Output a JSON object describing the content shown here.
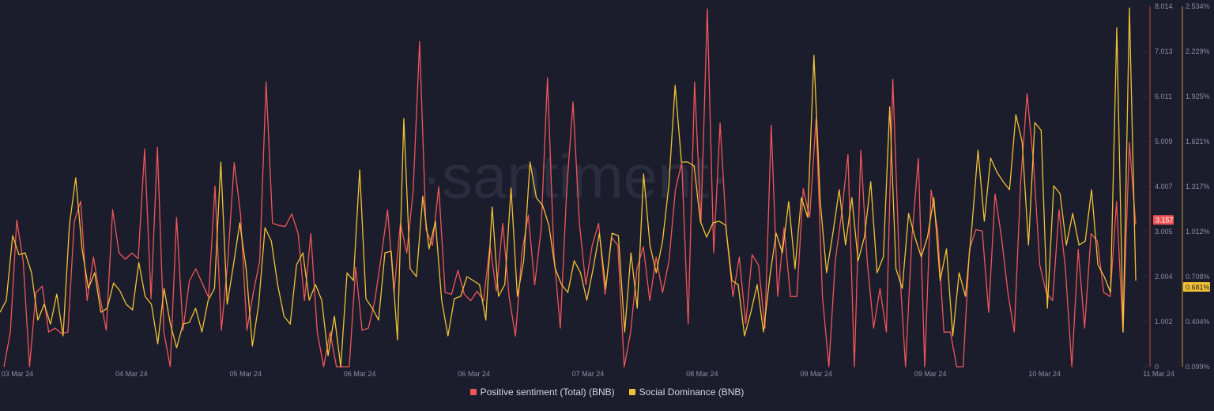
{
  "colors": {
    "background": "#1b1d2c",
    "sentiment": "#f0555a",
    "dominance": "#f2c235",
    "text": "#8a8fa3"
  },
  "watermark": "·santiment·",
  "chart_data": {
    "type": "line",
    "title": "",
    "x_tick_labels": [
      "03 Mar 24",
      "04 Mar 24",
      "05 Mar 24",
      "06 Mar 24",
      "06 Mar 24",
      "07 Mar 24",
      "08 Mar 24",
      "09 Mar 24",
      "09 Mar 24",
      "10 Mar 24",
      "11 Mar 24"
    ],
    "left_axis": {
      "ticks": [
        "8.014",
        "7.013",
        "6.011",
        "5.009",
        "4.007",
        "3.005",
        "2.004",
        "1.002",
        "0"
      ],
      "range": [
        0,
        8.014
      ]
    },
    "right_axis": {
      "ticks": [
        "2.534%",
        "2.229%",
        "1.925%",
        "1.621%",
        "1.317%",
        "1.012%",
        "0.708%",
        "0.404%",
        "0.099%"
      ],
      "range": [
        0.099,
        2.534
      ]
    },
    "series": [
      {
        "name": "Positive sentiment (Total) (BNB)",
        "axis": "left",
        "color": "#f0555a",
        "current_label": "3.157",
        "values": [
          0,
          0.77,
          3.26,
          2.35,
          0,
          1.65,
          1.79,
          0.77,
          0.86,
          0.74,
          0.77,
          3.23,
          3.68,
          1.47,
          2.44,
          1.56,
          0.81,
          3.49,
          2.53,
          2.39,
          2.53,
          2.4,
          4.84,
          1.51,
          4.88,
          0.77,
          0,
          3.32,
          0.81,
          1.91,
          2.18,
          1.86,
          1.54,
          4.02,
          0.81,
          2.35,
          4.54,
          3.4,
          0.81,
          1.65,
          2.35,
          6.33,
          3.19,
          3.14,
          3.12,
          3.4,
          2.96,
          1.47,
          2.96,
          0.77,
          0,
          0.77,
          0,
          0,
          0,
          2.21,
          0.81,
          0.86,
          1.47,
          2.44,
          3.49,
          1.65,
          3.19,
          2.53,
          3.93,
          7.23,
          3.05,
          2.7,
          4.0,
          1.65,
          1.61,
          2.14,
          1.61,
          1.47,
          1.68,
          1.47,
          2.7,
          1.68,
          3.19,
          1.56,
          0.68,
          2.53,
          3.37,
          1.82,
          3.05,
          6.42,
          2.53,
          0.86,
          3.93,
          5.89,
          3.19,
          1.82,
          2.7,
          3.19,
          1.61,
          2.88,
          2.7,
          0,
          0.77,
          2.18,
          2.67,
          1.47,
          2.44,
          1.65,
          2.35,
          3.93,
          4.54,
          0.95,
          6.33,
          3.19,
          7.96,
          2.53,
          5.42,
          2.96,
          1.56,
          2.44,
          0.95,
          2.49,
          2.26,
          0.86,
          5.37,
          1.56,
          3.09,
          1.56,
          1.56,
          3.96,
          3.32,
          5.51,
          1.56,
          0,
          2.35,
          3.4,
          4.72,
          0,
          4.81,
          2.35,
          0.86,
          1.74,
          0.77,
          6.39,
          2.35,
          0,
          2.88,
          4.63,
          0,
          3.93,
          3.05,
          0.77,
          0.77,
          0,
          0,
          2.61,
          3.05,
          3.02,
          1.21,
          3.84,
          2.88,
          1.65,
          0.77,
          4.11,
          6.07,
          4.54,
          2.26,
          1.65,
          1.47,
          3.49,
          2.18,
          0,
          2.61,
          0.86,
          2.96,
          2.79,
          1.65,
          1.56,
          3.67,
          0.77,
          4.98,
          3.16
        ]
      },
      {
        "name": "Social Dominance (BNB)",
        "axis": "right",
        "color": "#f2c235",
        "current_label": "0.681%",
        "values": [
          0.467,
          0.548,
          0.985,
          0.857,
          0.868,
          0.734,
          0.414,
          0.521,
          0.387,
          0.59,
          0.307,
          1.055,
          1.375,
          0.895,
          0.628,
          0.734,
          0.467,
          0.494,
          0.665,
          0.612,
          0.521,
          0.483,
          0.804,
          0.574,
          0.521,
          0.254,
          0.628,
          0.387,
          0.227,
          0.387,
          0.398,
          0.494,
          0.334,
          0.548,
          0.628,
          1.482,
          0.521,
          0.788,
          1.071,
          0.761,
          0.238,
          0.521,
          1.039,
          0.948,
          0.654,
          0.441,
          0.387,
          0.788,
          0.868,
          0.548,
          0.654,
          0.548,
          0.174,
          0.441,
          0.099,
          0.734,
          0.681,
          1.429,
          0.558,
          0.494,
          0.414,
          0.868,
          0.879,
          0.281,
          1.776,
          0.761,
          0.708,
          1.252,
          0.895,
          1.082,
          0.548,
          0.307,
          0.558,
          0.574,
          0.708,
          0.681,
          0.654,
          0.414,
          1.178,
          0.574,
          0.654,
          1.306,
          0.574,
          0.815,
          1.482,
          1.242,
          1.188,
          1.055,
          0.761,
          0.654,
          0.601,
          0.815,
          0.734,
          0.548,
          0.761,
          1.001,
          0.628,
          1.001,
          0.985,
          0.334,
          0.868,
          0.494,
          1.402,
          0.921,
          0.734,
          0.948,
          1.322,
          2.0,
          1.482,
          1.482,
          1.455,
          1.082,
          0.975,
          1.071,
          1.082,
          1.055,
          0.681,
          0.654,
          0.307,
          0.467,
          0.654,
          0.334,
          0.708,
          1.001,
          0.868,
          1.215,
          0.761,
          1.242,
          1.108,
          2.203,
          1.215,
          0.734,
          1.001,
          1.295,
          0.921,
          1.242,
          0.815,
          0.975,
          1.349,
          0.734,
          0.841,
          1.856,
          0.761,
          0.628,
          1.135,
          0.975,
          0.841,
          0.975,
          1.242,
          0.681,
          0.895,
          0.307,
          0.734,
          0.574,
          1.028,
          1.562,
          1.082,
          1.509,
          1.413,
          1.349,
          1.295,
          1.802,
          1.616,
          0.921,
          1.749,
          1.696,
          0.494,
          1.322,
          1.268,
          0.921,
          1.135,
          0.921,
          0.948,
          1.295,
          0.788,
          0.708,
          0.601,
          2.39,
          0.334,
          2.523,
          0.681
        ]
      }
    ]
  }
}
